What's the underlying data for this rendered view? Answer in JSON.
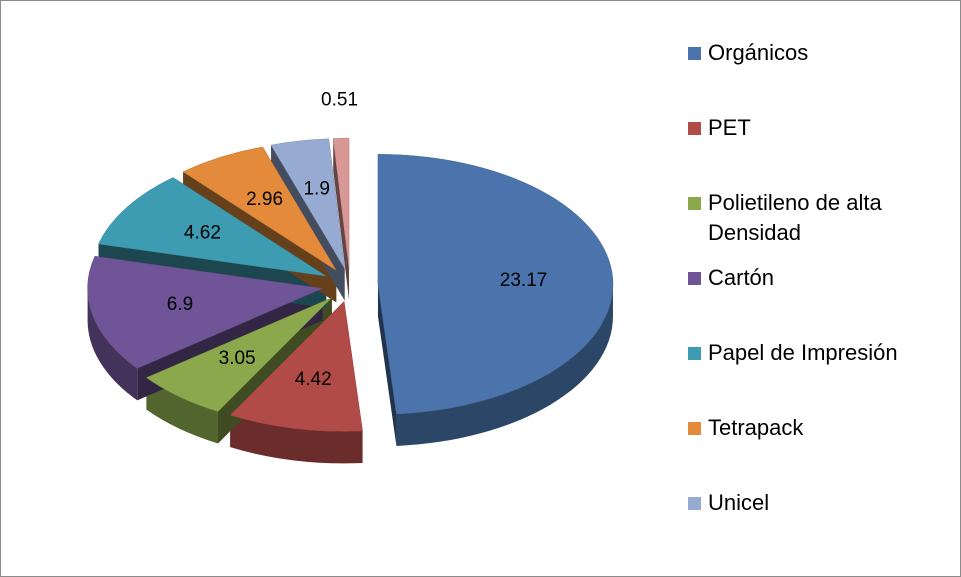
{
  "chart_data": {
    "type": "pie",
    "categories": [
      "Orgánicos",
      "PET",
      "Polietileno de alta Densidad",
      "Cartón",
      "Papel de Impresión",
      "Tetrapack",
      "Unicel",
      null
    ],
    "values": [
      23.17,
      4.42,
      3.05,
      6.9,
      4.62,
      2.96,
      1.9,
      0.51
    ],
    "colors": [
      "#4a74ab",
      "#b14b48",
      "#8ba94c",
      "#6f5597",
      "#3e9cb2",
      "#e38b3b",
      "#97aad2",
      "#d99795"
    ],
    "legend": "right"
  }
}
